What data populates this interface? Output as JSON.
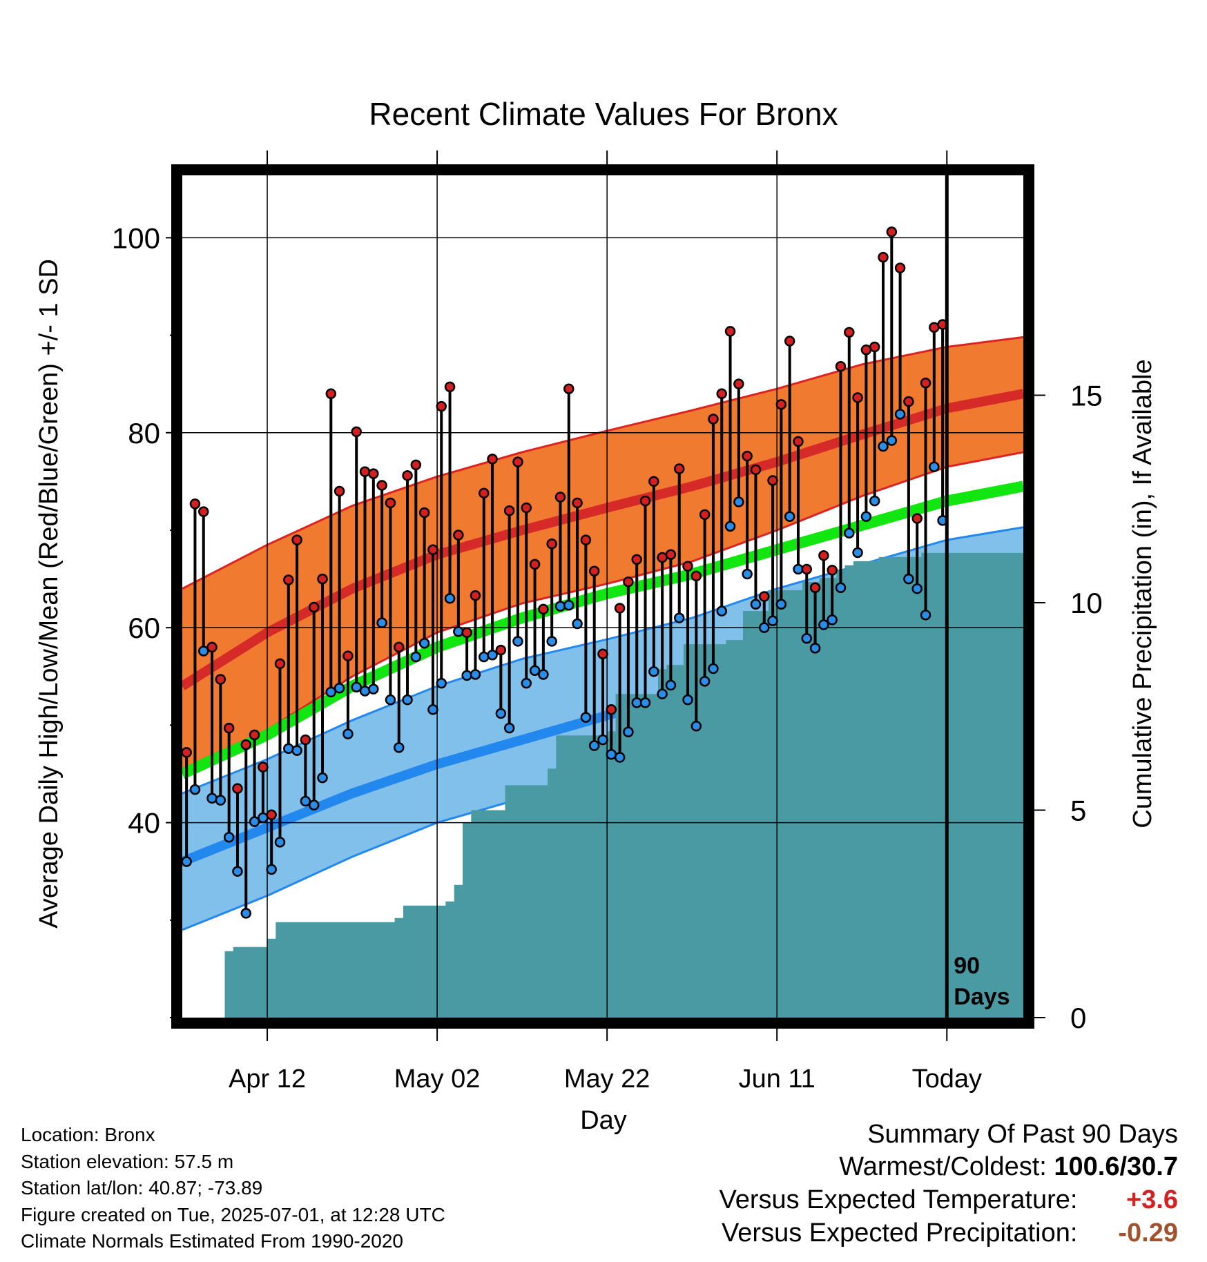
{
  "chart_data": {
    "type": "line",
    "title": "Recent Climate Values For Bronx",
    "xlabel": "Day",
    "ylabel": "Average Daily High/Low/Mean (Red/Blue/Green) +/- 1 SD",
    "y2label": "Cumulative Precipitation (in), If Available",
    "ylim": [
      20,
      106.4
    ],
    "y_ticks": [
      "40",
      "60",
      "80",
      "100"
    ],
    "y2lim": [
      0,
      20.3
    ],
    "y2_ticks": [
      "0",
      "5",
      "10",
      "15"
    ],
    "xlim": [
      0,
      99
    ],
    "x_ticks": [
      {
        "label": "Apr 12",
        "day": 10
      },
      {
        "label": "May 02",
        "day": 30
      },
      {
        "label": "May 22",
        "day": 50
      },
      {
        "label": "Jun 11",
        "day": 70
      },
      {
        "label": "Today",
        "day": 90
      }
    ],
    "today_marker": {
      "day": 90,
      "label_line1": "90",
      "label_line2": "Days"
    },
    "grid": true,
    "colors": {
      "high_band": "#f07a30",
      "high_mean": "#d62a28",
      "mean_normal": "#11e611",
      "low_band": "#80c0ea",
      "low_mean": "#2288ee",
      "band_edge_high": "#dd2222",
      "band_edge_low": "#2288ee",
      "precip": "#4a9aa4",
      "high_dot": "#d42020",
      "low_dot": "#2a8ee8",
      "stem": "#000000",
      "anomaly_temp": "#d42020",
      "anomaly_precip": "#a0522d"
    },
    "normals": {
      "days": [
        0,
        10,
        20,
        30,
        40,
        50,
        60,
        70,
        80,
        90,
        99
      ],
      "high_mean": [
        54.0,
        59.5,
        64.0,
        67.5,
        70.0,
        72.3,
        74.5,
        77.0,
        79.8,
        82.5,
        84.0
      ],
      "high_upper": [
        64.0,
        68.5,
        72.5,
        75.5,
        78.0,
        80.2,
        82.3,
        84.5,
        87.0,
        88.8,
        89.8
      ],
      "high_lower": [
        45.5,
        49.5,
        55.0,
        59.5,
        62.5,
        64.5,
        66.8,
        70.0,
        73.5,
        76.5,
        78.0
      ],
      "mean_normal": [
        45.0,
        49.0,
        54.0,
        58.0,
        61.0,
        63.5,
        65.5,
        68.0,
        70.5,
        73.0,
        74.5
      ],
      "low_upper": [
        43.0,
        46.5,
        50.5,
        54.0,
        56.8,
        58.8,
        61.0,
        64.0,
        66.5,
        69.0,
        70.3
      ],
      "low_mean": [
        36.0,
        39.5,
        43.0,
        46.0,
        48.5,
        51.0,
        53.5,
        56.5,
        60.0,
        63.5,
        65.0
      ],
      "low_lower": [
        29.0,
        32.5,
        36.5,
        40.0,
        42.5,
        45.0,
        47.5,
        51.0,
        54.5,
        57.8,
        59.5
      ]
    },
    "daily_high": [
      47.2,
      72.7,
      71.9,
      58.0,
      54.7,
      49.7,
      43.5,
      48.0,
      49.0,
      45.7,
      40.8,
      56.3,
      64.9,
      69.0,
      48.5,
      62.1,
      65.0,
      84.0,
      74.0,
      57.1,
      80.1,
      76.0,
      75.8,
      74.6,
      72.8,
      58.0,
      75.6,
      76.7,
      71.8,
      68.0,
      82.7,
      84.7,
      69.5,
      59.5,
      63.3,
      73.8,
      77.3,
      57.7,
      72.0,
      77.0,
      72.3,
      66.5,
      61.9,
      68.6,
      73.4,
      84.5,
      72.8,
      69.0,
      65.8,
      57.3,
      51.6,
      62.0,
      64.7,
      67.0,
      73.0,
      75.0,
      67.2,
      67.5,
      76.3,
      66.3,
      65.3,
      71.6,
      81.4,
      84.0,
      90.4,
      85.0,
      77.6,
      76.2,
      63.2,
      75.1,
      82.9,
      89.4,
      79.1,
      66.0,
      64.1,
      67.4,
      65.9,
      86.8,
      90.3,
      83.6,
      88.5,
      88.8,
      98.0,
      100.6,
      96.9,
      83.2,
      71.2,
      85.1,
      90.8,
      91.1
    ],
    "daily_low": [
      36.0,
      43.4,
      57.6,
      42.5,
      42.3,
      38.5,
      35.0,
      30.7,
      40.1,
      40.5,
      35.2,
      38.0,
      47.6,
      47.4,
      42.2,
      41.8,
      44.6,
      53.4,
      53.8,
      49.1,
      53.9,
      53.5,
      53.7,
      60.5,
      52.6,
      47.7,
      52.6,
      57.0,
      58.4,
      51.6,
      54.3,
      63.0,
      59.6,
      55.1,
      55.2,
      57.0,
      57.2,
      51.2,
      49.7,
      58.6,
      54.3,
      55.6,
      55.2,
      58.6,
      62.2,
      62.3,
      60.4,
      50.8,
      47.9,
      48.5,
      47.0,
      46.7,
      49.3,
      52.3,
      52.3,
      55.5,
      53.2,
      54.1,
      61.0,
      52.6,
      49.9,
      54.5,
      55.8,
      61.7,
      70.4,
      72.9,
      65.5,
      62.4,
      60.0,
      60.7,
      62.4,
      71.4,
      66.0,
      58.9,
      57.9,
      60.3,
      60.8,
      64.1,
      69.7,
      67.7,
      71.4,
      73.0,
      78.6,
      79.2,
      81.9,
      65.0,
      64.0,
      61.3,
      76.5,
      71.0
    ],
    "cumulative_precip": [
      0,
      0,
      0,
      0,
      0,
      1.6,
      1.7,
      1.7,
      1.7,
      1.7,
      1.9,
      2.3,
      2.3,
      2.3,
      2.3,
      2.3,
      2.3,
      2.3,
      2.3,
      2.3,
      2.3,
      2.3,
      2.3,
      2.3,
      2.3,
      2.4,
      2.7,
      2.7,
      2.7,
      2.7,
      2.7,
      2.8,
      3.2,
      4.7,
      5.0,
      5.0,
      5.0,
      5.0,
      5.6,
      5.6,
      5.6,
      5.6,
      5.6,
      6.0,
      6.8,
      6.8,
      6.8,
      6.8,
      6.8,
      6.8,
      6.9,
      7.8,
      7.8,
      7.8,
      7.8,
      7.8,
      8.4,
      8.5,
      8.5,
      9.0,
      9.0,
      9.0,
      9.0,
      9.0,
      9.1,
      9.1,
      9.8,
      9.8,
      9.8,
      10.3,
      10.3,
      10.3,
      10.3,
      10.5,
      10.5,
      10.6,
      10.6,
      10.8,
      10.9,
      11.0,
      11.0,
      11.0,
      11.1,
      11.1,
      11.1,
      11.1,
      11.1,
      11.2,
      11.2,
      11.2,
      11.2,
      11.2,
      11.2,
      11.2,
      11.2,
      11.2,
      11.2,
      11.2,
      11.2,
      11.2
    ]
  },
  "location": {
    "line1": "Location: Bronx",
    "line2": "Station elevation: 57.5 m",
    "line3": "Station lat/lon: 40.87; -73.89",
    "line4": "Figure created on Tue, 2025-07-01, at 12:28 UTC",
    "line5": "Climate Normals Estimated From 1990-2020"
  },
  "summary": {
    "heading": "Summary Of Past 90 Days",
    "warmest_coldest_label": "Warmest/Coldest:",
    "warmest_coldest_value": "100.6/30.7",
    "temp_label": "Versus Expected Temperature:",
    "temp_value": "+3.6",
    "precip_label": "Versus Expected Precipitation:",
    "precip_value": "-0.29"
  }
}
